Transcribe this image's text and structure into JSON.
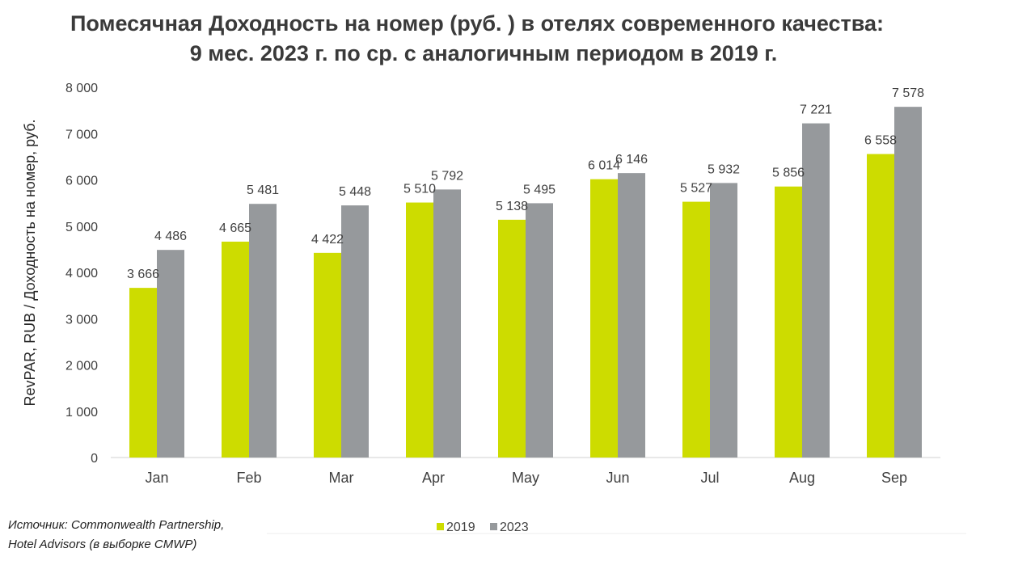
{
  "title_line_1": "Помесячная Доходность на номер (руб. ) в отелях современного качества:",
  "title_line_2": "9 мес. 2023 г. по ср. с аналогичным периодом в 2019 г.",
  "source_line_1": "Источник: Commonwealth Partnership,",
  "source_line_2": "Hotel Advisors (в выборке CMWP)",
  "colors": {
    "series_2019": "#cddc00",
    "series_2023": "#96999c",
    "axis": "#d9d9d9",
    "text": "#404040"
  },
  "chart_data": {
    "type": "bar",
    "title": "Помесячная Доходность на номер (руб. ) в отелях современного качества: 9 мес. 2023 г. по ср. с аналогичным периодом в 2019 г.",
    "ylabel": "RevPAR, RUB / Доходность на номер, руб.",
    "xlabel": "",
    "categories": [
      "Jan",
      "Feb",
      "Mar",
      "Apr",
      "May",
      "Jun",
      "Jul",
      "Aug",
      "Sep"
    ],
    "series": [
      {
        "name": "2019",
        "values": [
          3666,
          4665,
          4422,
          5510,
          5138,
          6014,
          5527,
          5856,
          6558
        ],
        "labels": [
          "3 666",
          "4 665",
          "4 422",
          "5 510",
          "5 138",
          "6 014",
          "5 527",
          "5 856",
          "6 558"
        ]
      },
      {
        "name": "2023",
        "values": [
          4486,
          5481,
          5448,
          5792,
          5495,
          6146,
          5932,
          7221,
          7578
        ],
        "labels": [
          "4 486",
          "5 481",
          "5 448",
          "5 792",
          "5 495",
          "6 146",
          "5 932",
          "7 221",
          "7 578"
        ]
      }
    ],
    "ylim": [
      0,
      8000
    ],
    "yticks": [
      0,
      1000,
      2000,
      3000,
      4000,
      5000,
      6000,
      7000,
      8000
    ],
    "ytick_labels": [
      "0",
      "1 000",
      "2 000",
      "3 000",
      "4 000",
      "5 000",
      "6 000",
      "7 000",
      "8 000"
    ],
    "grid": false,
    "legend_position": "bottom"
  }
}
